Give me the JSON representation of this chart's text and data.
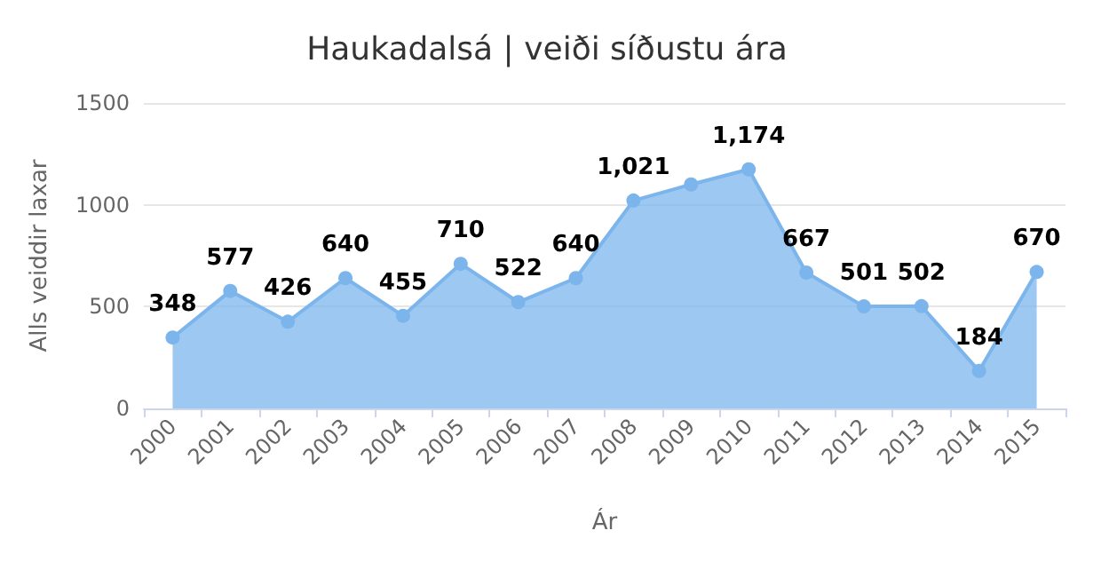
{
  "chart_data": {
    "type": "area",
    "title": "Haukadalsá | veiði síðustu ára",
    "xlabel": "Ár",
    "ylabel": "Alls veiddir laxar",
    "categories": [
      "2000",
      "2001",
      "2002",
      "2003",
      "2004",
      "2005",
      "2006",
      "2007",
      "2008",
      "2009",
      "2010",
      "2011",
      "2012",
      "2013",
      "2014",
      "2015"
    ],
    "series": [
      {
        "color": "#7cb5ec",
        "values": [
          348,
          577,
          426,
          640,
          455,
          710,
          522,
          640,
          1021,
          1100,
          1174,
          667,
          501,
          502,
          184,
          670
        ],
        "value_labels": [
          "348",
          "577",
          "426",
          "640",
          "455",
          "710",
          "522",
          "640",
          "1,021",
          null,
          "1,174",
          "667",
          "501",
          "502",
          "184",
          "670"
        ]
      }
    ],
    "ylim": [
      0,
      1500
    ],
    "yticks": [
      0,
      500,
      1000,
      1500
    ],
    "grid": "y",
    "marker": "circle"
  }
}
